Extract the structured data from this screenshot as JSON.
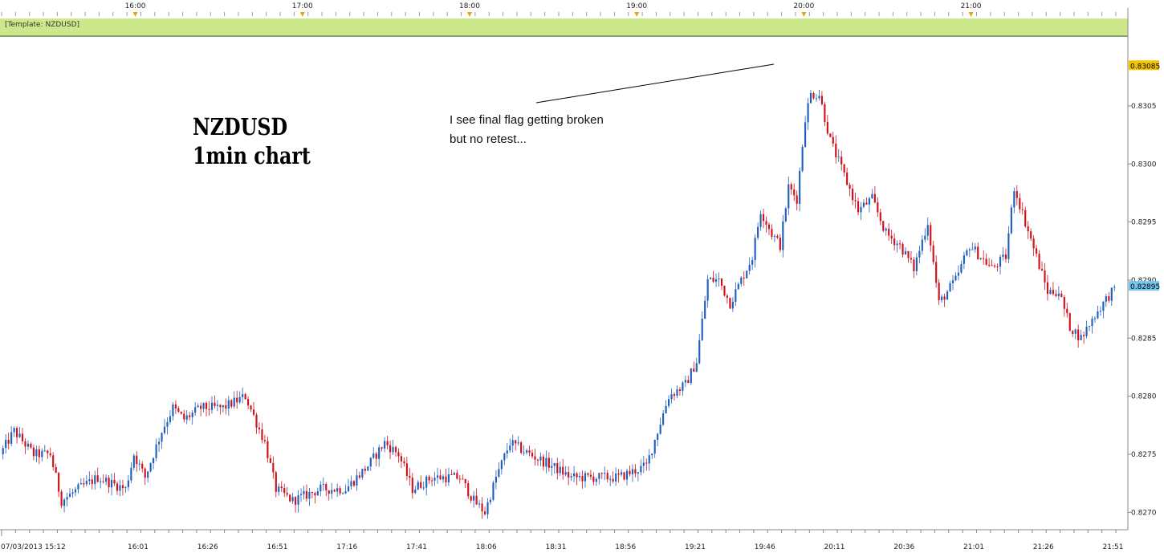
{
  "template_label": "[Template: NZDUSD]",
  "chart_data": {
    "type": "candlestick",
    "title": "NZDUSD",
    "subtitle": "1min chart",
    "annotation": {
      "line1": "I see final flag getting broken",
      "line2": "but no retest..."
    },
    "colors": {
      "up": "#1f5fbf",
      "down": "#d0101a",
      "template_bar": "#cde88b",
      "current_price_tag": "#73c6ee",
      "high_price_tag": "#f5c400",
      "time_marker": "#e8a020"
    },
    "ylim": [
      0.82685,
      0.83108
    ],
    "y_ticks": [
      "0.8270",
      "0.8275",
      "0.8280",
      "0.8285",
      "0.8290",
      "0.8295",
      "0.8300",
      "0.8305"
    ],
    "y_tick_values": [
      0.827,
      0.8275,
      0.828,
      0.8285,
      0.829,
      0.8295,
      0.83,
      0.8305
    ],
    "high_price_label": "0.83085",
    "high_price_value": 0.83085,
    "current_price_label": "0.82895",
    "current_price_value": 0.82895,
    "x_tick_labels": [
      "07/03/2013 15:12",
      "16:01",
      "16:26",
      "16:51",
      "17:16",
      "17:41",
      "18:06",
      "18:31",
      "18:56",
      "19:21",
      "19:46",
      "20:11",
      "20:36",
      "21:01",
      "21:26",
      "21:51"
    ],
    "x_tick_minutes": [
      0,
      49,
      74,
      99,
      124,
      149,
      174,
      199,
      224,
      249,
      274,
      299,
      324,
      349,
      374,
      399
    ],
    "top_time_labels": [
      "16:00",
      "17:00",
      "18:00",
      "19:00",
      "20:00",
      "21:00"
    ],
    "top_time_minutes": [
      48,
      108,
      168,
      228,
      288,
      348
    ],
    "total_minutes": 400,
    "close_path": [
      [
        0,
        0.8275
      ],
      [
        5,
        0.8277
      ],
      [
        12,
        0.8275
      ],
      [
        18,
        0.8275
      ],
      [
        22,
        0.8271
      ],
      [
        28,
        0.8272
      ],
      [
        35,
        0.8273
      ],
      [
        45,
        0.8272
      ],
      [
        48,
        0.8275
      ],
      [
        52,
        0.8273
      ],
      [
        58,
        0.8277
      ],
      [
        62,
        0.8279
      ],
      [
        66,
        0.8278
      ],
      [
        72,
        0.8279
      ],
      [
        80,
        0.8279
      ],
      [
        88,
        0.828
      ],
      [
        95,
        0.8276
      ],
      [
        99,
        0.8272
      ],
      [
        105,
        0.8271
      ],
      [
        115,
        0.8272
      ],
      [
        124,
        0.8272
      ],
      [
        132,
        0.8274
      ],
      [
        138,
        0.8276
      ],
      [
        143,
        0.8275
      ],
      [
        148,
        0.8272
      ],
      [
        155,
        0.8273
      ],
      [
        165,
        0.8273
      ],
      [
        170,
        0.8271
      ],
      [
        174,
        0.827
      ],
      [
        178,
        0.8273
      ],
      [
        183,
        0.8276
      ],
      [
        190,
        0.8275
      ],
      [
        198,
        0.8274
      ],
      [
        205,
        0.8273
      ],
      [
        215,
        0.8273
      ],
      [
        222,
        0.8273
      ],
      [
        232,
        0.8274
      ],
      [
        236,
        0.8277
      ],
      [
        240,
        0.828
      ],
      [
        246,
        0.8281
      ],
      [
        250,
        0.8283
      ],
      [
        254,
        0.829
      ],
      [
        258,
        0.829
      ],
      [
        262,
        0.8288
      ],
      [
        266,
        0.829
      ],
      [
        270,
        0.8292
      ],
      [
        273,
        0.8296
      ],
      [
        277,
        0.8294
      ],
      [
        280,
        0.8293
      ],
      [
        283,
        0.8298
      ],
      [
        286,
        0.8297
      ],
      [
        289,
        0.8304
      ],
      [
        291,
        0.8306
      ],
      [
        294,
        0.8306
      ],
      [
        298,
        0.8302
      ],
      [
        303,
        0.8299
      ],
      [
        308,
        0.8296
      ],
      [
        313,
        0.8297
      ],
      [
        318,
        0.8294
      ],
      [
        323,
        0.8293
      ],
      [
        328,
        0.8291
      ],
      [
        333,
        0.8295
      ],
      [
        337,
        0.8288
      ],
      [
        343,
        0.829
      ],
      [
        348,
        0.8293
      ],
      [
        356,
        0.8291
      ],
      [
        361,
        0.8292
      ],
      [
        364,
        0.8298
      ],
      [
        368,
        0.8295
      ],
      [
        372,
        0.8292
      ],
      [
        376,
        0.8289
      ],
      [
        380,
        0.8289
      ],
      [
        384,
        0.8286
      ],
      [
        388,
        0.8285
      ],
      [
        393,
        0.8287
      ],
      [
        399,
        0.8289
      ]
    ]
  }
}
